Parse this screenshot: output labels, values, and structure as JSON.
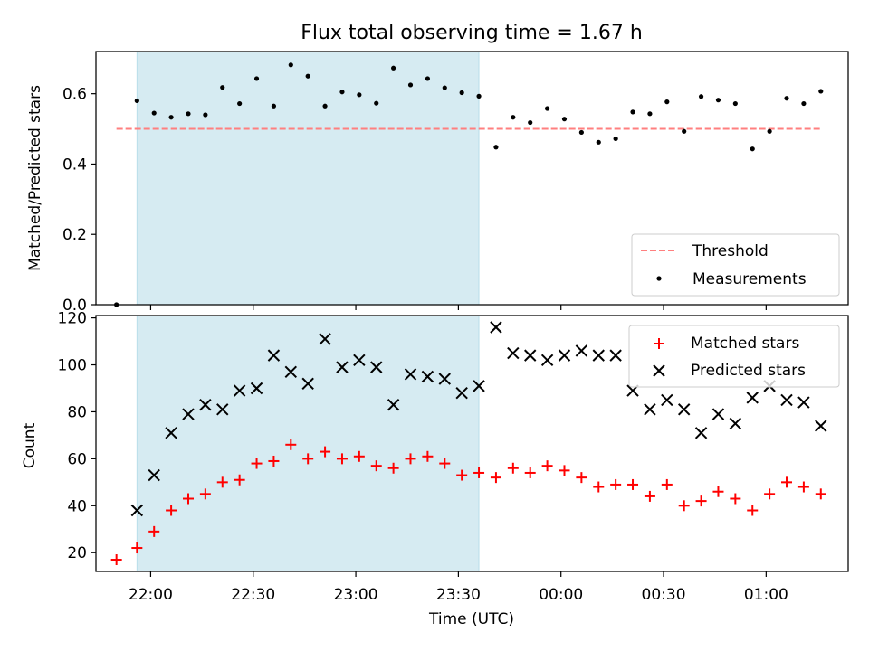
{
  "chart_data": [
    {
      "type": "scatter",
      "title": "Flux total observing time = 1.67 h",
      "xlabel": "",
      "ylabel": "Matched/Predicted stars",
      "ylim": [
        0,
        0.72
      ],
      "x_range": [
        "21:44",
        "01:24"
      ],
      "yticks": [
        "0.0",
        "0.2",
        "0.4",
        "0.6"
      ],
      "shaded_region": {
        "start": "21:56",
        "end": "23:36"
      },
      "legend_position": "lower-right",
      "threshold": {
        "name": "Threshold",
        "value": 0.5,
        "x_start": "21:50",
        "x_end": "01:16",
        "color": "#ff7f7f"
      },
      "series": [
        {
          "name": "Measurements",
          "color": "#000000",
          "x": [
            "21:50",
            "21:56",
            "22:01",
            "22:06",
            "22:11",
            "22:16",
            "22:21",
            "22:26",
            "22:31",
            "22:36",
            "22:41",
            "22:46",
            "22:51",
            "22:56",
            "23:01",
            "23:06",
            "23:11",
            "23:16",
            "23:21",
            "23:26",
            "23:31",
            "23:36",
            "23:41",
            "23:46",
            "23:51",
            "23:56",
            "00:01",
            "00:06",
            "00:11",
            "00:16",
            "00:21",
            "00:26",
            "00:31",
            "00:36",
            "00:41",
            "00:46",
            "00:51",
            "00:56",
            "01:01",
            "01:06",
            "01:11",
            "01:16"
          ],
          "values": [
            0.0,
            0.58,
            0.545,
            0.533,
            0.543,
            0.54,
            0.618,
            0.572,
            0.643,
            0.565,
            0.682,
            0.65,
            0.565,
            0.605,
            0.597,
            0.573,
            0.673,
            0.625,
            0.643,
            0.617,
            0.603,
            0.593,
            0.448,
            0.533,
            0.518,
            0.558,
            0.528,
            0.49,
            0.462,
            0.472,
            0.548,
            0.543,
            0.577,
            0.493,
            0.592,
            0.582,
            0.572,
            0.443,
            0.493,
            0.587,
            0.572,
            0.607
          ]
        }
      ]
    },
    {
      "type": "scatter",
      "xlabel": "Time (UTC)",
      "ylabel": "Count",
      "ylim": [
        12,
        121
      ],
      "x_range": [
        "21:44",
        "01:24"
      ],
      "xticks": [
        "22:00",
        "22:30",
        "23:00",
        "23:30",
        "00:00",
        "00:30",
        "01:00"
      ],
      "yticks": [
        "20",
        "40",
        "60",
        "80",
        "100",
        "120"
      ],
      "shaded_region": {
        "start": "21:56",
        "end": "23:36"
      },
      "legend_position": "top-right",
      "series": [
        {
          "name": "Matched stars",
          "color": "#ff0000",
          "marker": "+",
          "x": [
            "21:50",
            "21:56",
            "22:01",
            "22:06",
            "22:11",
            "22:16",
            "22:21",
            "22:26",
            "22:31",
            "22:36",
            "22:41",
            "22:46",
            "22:51",
            "22:56",
            "23:01",
            "23:06",
            "23:11",
            "23:16",
            "23:21",
            "23:26",
            "23:31",
            "23:36",
            "23:41",
            "23:46",
            "23:51",
            "23:56",
            "00:01",
            "00:06",
            "00:11",
            "00:16",
            "00:21",
            "00:26",
            "00:31",
            "00:36",
            "00:41",
            "00:46",
            "00:51",
            "00:56",
            "01:01",
            "01:06",
            "01:11",
            "01:16"
          ],
          "values": [
            17,
            22,
            29,
            38,
            43,
            45,
            50,
            51,
            58,
            59,
            66,
            60,
            63,
            60,
            61,
            57,
            56,
            60,
            61,
            58,
            53,
            54,
            52,
            56,
            54,
            57,
            55,
            52,
            48,
            49,
            49,
            44,
            49,
            40,
            42,
            46,
            43,
            38,
            45,
            50,
            48,
            45
          ]
        },
        {
          "name": "Predicted stars",
          "color": "#000000",
          "marker": "x",
          "x": [
            "21:56",
            "22:01",
            "22:06",
            "22:11",
            "22:16",
            "22:21",
            "22:26",
            "22:31",
            "22:36",
            "22:41",
            "22:46",
            "22:51",
            "22:56",
            "23:01",
            "23:06",
            "23:11",
            "23:16",
            "23:21",
            "23:26",
            "23:31",
            "23:36",
            "23:41",
            "23:46",
            "23:51",
            "23:56",
            "00:01",
            "00:06",
            "00:11",
            "00:16",
            "00:21",
            "00:26",
            "00:31",
            "00:36",
            "00:41",
            "00:46",
            "00:51",
            "00:56",
            "01:01",
            "01:06",
            "01:11",
            "01:16"
          ],
          "values": [
            38,
            53,
            71,
            79,
            83,
            81,
            89,
            90,
            104,
            97,
            92,
            111,
            99,
            102,
            99,
            83,
            96,
            95,
            94,
            88,
            91,
            116,
            105,
            104,
            102,
            104,
            106,
            104,
            104,
            89,
            81,
            85,
            81,
            71,
            79,
            75,
            86,
            91,
            85,
            84,
            74
          ]
        }
      ]
    }
  ]
}
